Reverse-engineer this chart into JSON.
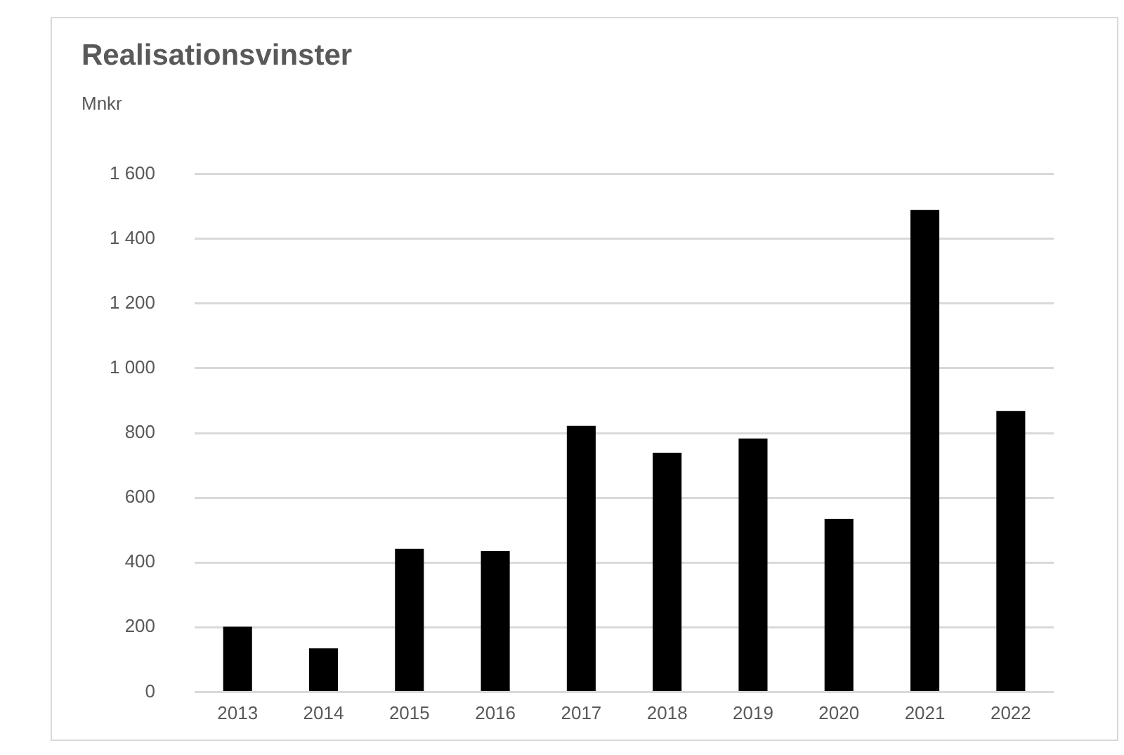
{
  "chart_data": {
    "type": "bar",
    "title": "Realisationsvinster",
    "ylabel": "Mnkr",
    "categories": [
      "2013",
      "2014",
      "2015",
      "2016",
      "2017",
      "2018",
      "2019",
      "2020",
      "2021",
      "2022"
    ],
    "values": [
      202,
      135,
      442,
      435,
      822,
      739,
      783,
      535,
      1489,
      868
    ],
    "color": "#000000",
    "ylim": [
      0,
      1600
    ],
    "yticks": [
      0,
      {
        "value": 200,
        "label": "200"
      },
      {
        "value": 400,
        "label": "400"
      },
      {
        "value": 600,
        "label": "600"
      },
      {
        "value": 800,
        "label": "800"
      },
      {
        "value": 1000,
        "label": "1 000"
      },
      {
        "value": 1200,
        "label": "1 200"
      },
      {
        "value": 1400,
        "label": "1 400"
      },
      {
        "value": 1600,
        "label": "1 600"
      }
    ],
    "grid": "y",
    "legend": false
  }
}
